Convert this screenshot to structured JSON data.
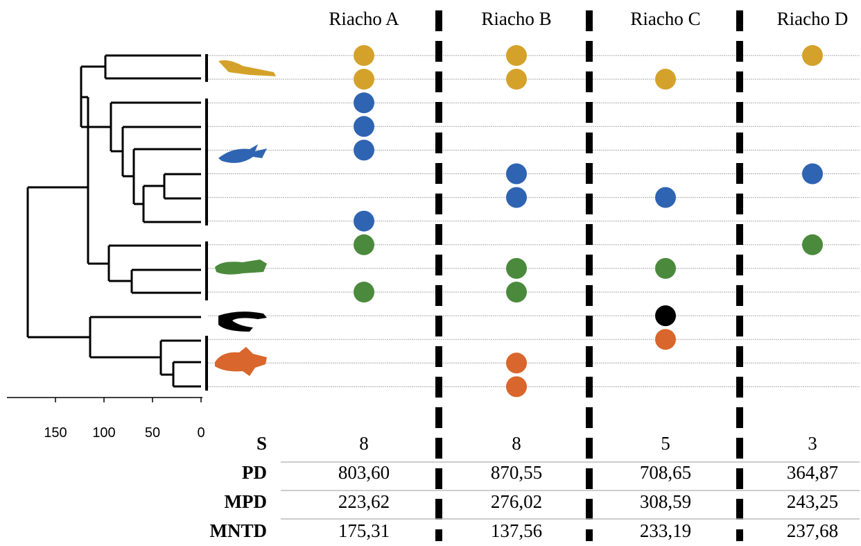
{
  "axis": {
    "xlim": [
      0,
      200
    ],
    "xticks": [
      150,
      100,
      50,
      0
    ]
  },
  "columns": [
    "Riacho A",
    "Riacho B",
    "Riacho C",
    "Riacho D"
  ],
  "rows": [
    {
      "color": "#d4a22a",
      "presence": [
        1,
        1,
        0,
        1
      ]
    },
    {
      "color": "#d4a22a",
      "presence": [
        1,
        1,
        1,
        0
      ]
    },
    {
      "color": "#2f64b2",
      "presence": [
        1,
        0,
        0,
        0
      ]
    },
    {
      "color": "#2f64b2",
      "presence": [
        1,
        0,
        0,
        0
      ]
    },
    {
      "color": "#2f64b2",
      "presence": [
        1,
        0,
        0,
        0
      ]
    },
    {
      "color": "#2f64b2",
      "presence": [
        0,
        1,
        0,
        1
      ]
    },
    {
      "color": "#2f64b2",
      "presence": [
        0,
        1,
        1,
        0
      ]
    },
    {
      "color": "#2f64b2",
      "presence": [
        1,
        0,
        0,
        0
      ]
    },
    {
      "color": "#4b8a3c",
      "presence": [
        1,
        0,
        0,
        1
      ]
    },
    {
      "color": "#4b8a3c",
      "presence": [
        0,
        1,
        1,
        0
      ]
    },
    {
      "color": "#4b8a3c",
      "presence": [
        1,
        1,
        0,
        0
      ]
    },
    {
      "color": "#000000",
      "presence": [
        0,
        0,
        1,
        0
      ]
    },
    {
      "color": "#d9662c",
      "presence": [
        0,
        0,
        1,
        0
      ]
    },
    {
      "color": "#d9662c",
      "presence": [
        0,
        1,
        0,
        0
      ]
    },
    {
      "color": "#d9662c",
      "presence": [
        0,
        1,
        0,
        0
      ]
    }
  ],
  "table": [
    {
      "label": "S",
      "values": [
        "8",
        "8",
        "5",
        "3"
      ]
    },
    {
      "label": "PD",
      "values": [
        "803,60",
        "870,55",
        "708,65",
        "364,87"
      ]
    },
    {
      "label": "MPD",
      "values": [
        "223,62",
        "276,02",
        "308,59",
        "243,25"
      ]
    },
    {
      "label": "MNTD",
      "values": [
        "175,31",
        "137,56",
        "233,19",
        "237,68"
      ]
    }
  ]
}
